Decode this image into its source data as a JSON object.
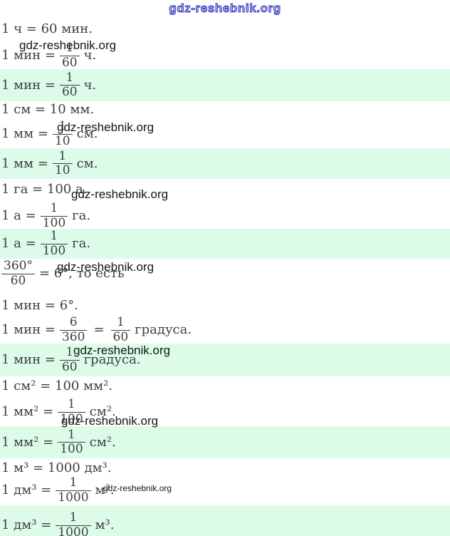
{
  "header": {
    "watermark": "gdz-reshebnik.org"
  },
  "inline_watermark": {
    "text": "gdz-reshebnik.org"
  },
  "colors": {
    "highlight_green": "#dcfce9",
    "math_text": "#3f3f3f",
    "watermark_black": "#141414",
    "header_blue": "#3a3abd",
    "page_background": "#ffffff"
  },
  "lines": [
    {
      "text": "1 ч = 60 мин."
    },
    {
      "pre": "1 мин =",
      "num": "1",
      "den": "60",
      "post": "ч."
    },
    {
      "pre": "1 мин =",
      "num": "1",
      "den": "60",
      "post": "ч.",
      "highlighted": true
    },
    {
      "text": "1 см = 10 мм."
    },
    {
      "pre": "1 мм =",
      "num": "1",
      "den": "10",
      "post": "см."
    },
    {
      "pre": "1 мм =",
      "num": "1",
      "den": "10",
      "post": "см.",
      "highlighted": true
    },
    {
      "text": "1 га = 100 а."
    },
    {
      "pre": "1 а =",
      "num": "1",
      "den": "100",
      "post": "га."
    },
    {
      "pre": "1 а =",
      "num": "1",
      "den": "100",
      "post": "га.",
      "highlighted": true
    },
    {
      "num": "360°",
      "den": "60",
      "post": "= 6°, то есть"
    },
    {
      "text": "1 мин = 6°."
    },
    {
      "pre": "1 мин =",
      "num": "6",
      "den": "360",
      "mid": "=",
      "num2": "1",
      "den2": "60",
      "post": "градуса."
    },
    {
      "pre": "1 мин =",
      "num": "1",
      "den": "60",
      "post": "градуса.",
      "highlighted": true
    },
    {
      "text": "1 см² = 100 мм²."
    },
    {
      "pre": "1 мм² =",
      "num": "1",
      "den": "100",
      "post": "см²."
    },
    {
      "pre": "1 мм² =",
      "num": "1",
      "den": "100",
      "post": "см².",
      "highlighted": true
    },
    {
      "text": "1 м³ = 1000 дм³."
    },
    {
      "pre": "1 дм³ =",
      "num": "1",
      "den": "1000",
      "post": "м³."
    },
    {
      "pre": "1 дм³ =",
      "num": "1",
      "den": "1000",
      "post": "м³.",
      "highlighted": true
    }
  ]
}
